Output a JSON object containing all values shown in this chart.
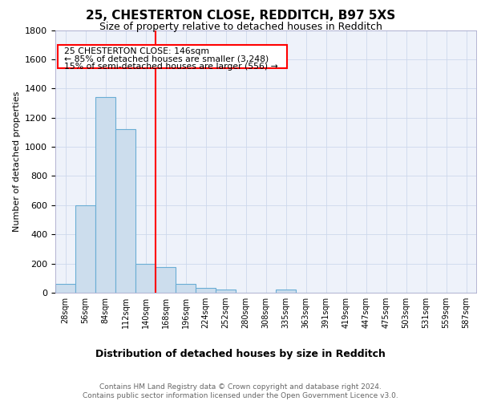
{
  "title_line1": "25, CHESTERTON CLOSE, REDDITCH, B97 5XS",
  "title_line2": "Size of property relative to detached houses in Redditch",
  "xlabel": "Distribution of detached houses by size in Redditch",
  "ylabel": "Number of detached properties",
  "footer_line1": "Contains HM Land Registry data © Crown copyright and database right 2024.",
  "footer_line2": "Contains public sector information licensed under the Open Government Licence v3.0.",
  "categories": [
    "28sqm",
    "56sqm",
    "84sqm",
    "112sqm",
    "140sqm",
    "168sqm",
    "196sqm",
    "224sqm",
    "252sqm",
    "280sqm",
    "308sqm",
    "335sqm",
    "363sqm",
    "391sqm",
    "419sqm",
    "447sqm",
    "475sqm",
    "503sqm",
    "531sqm",
    "559sqm",
    "587sqm"
  ],
  "values": [
    60,
    600,
    1340,
    1120,
    200,
    175,
    60,
    35,
    20,
    0,
    0,
    20,
    0,
    0,
    0,
    0,
    0,
    0,
    0,
    0,
    0
  ],
  "bar_color": "#ccdded",
  "bar_edge_color": "#6aadd5",
  "vline_color": "red",
  "vline_pos": 4.5,
  "ylim": [
    0,
    1800
  ],
  "yticks": [
    0,
    200,
    400,
    600,
    800,
    1000,
    1200,
    1400,
    1600,
    1800
  ],
  "annotation_text_line1": "25 CHESTERTON CLOSE: 146sqm",
  "annotation_text_line2": "← 85% of detached houses are smaller (3,248)",
  "annotation_text_line3": "15% of semi-detached houses are larger (556) →",
  "grid_color": "#cdd8ec",
  "bg_color": "#eef2fa",
  "title_fontsize": 11,
  "subtitle_fontsize": 9,
  "ylabel_fontsize": 8,
  "xlabel_fontsize": 9,
  "tick_fontsize": 8,
  "xtick_fontsize": 7,
  "footer_fontsize": 6.5,
  "ann_fontsize": 7.8
}
